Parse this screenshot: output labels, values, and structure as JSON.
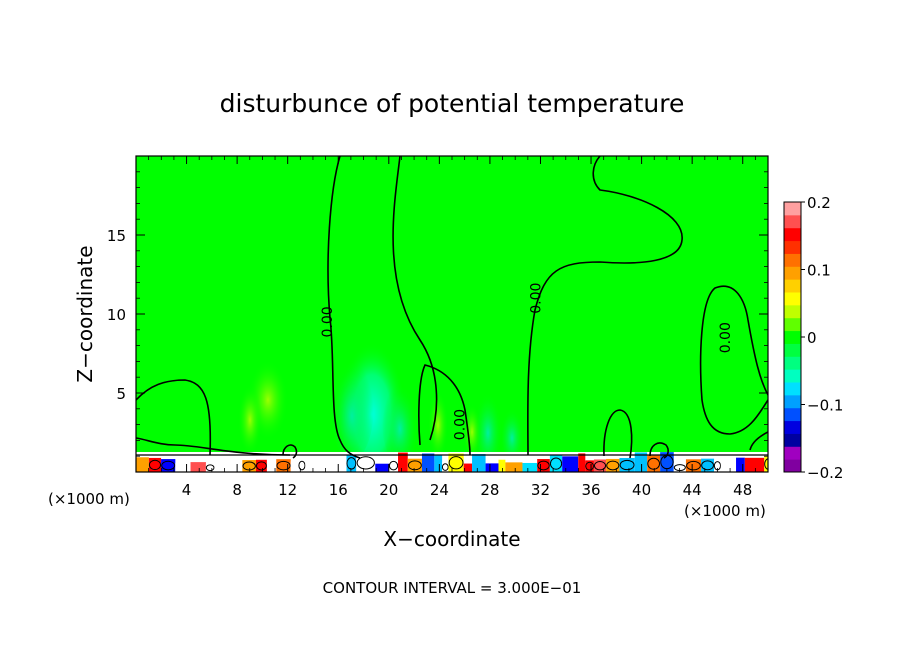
{
  "chart_data": {
    "type": "heatmap",
    "title": "disturbunce of potential temperature",
    "xlabel": "X−coordinate",
    "ylabel": "Z−coordinate",
    "x_unit_left": "(×1000 m)",
    "x_unit_right": "(×1000 m)",
    "xlim": [
      0,
      50
    ],
    "ylim": [
      0,
      20
    ],
    "x_ticks": [
      4,
      8,
      12,
      16,
      20,
      24,
      28,
      32,
      36,
      40,
      44,
      48
    ],
    "y_ticks": [
      5,
      10,
      15
    ],
    "contour_interval_text": "CONTOUR INTERVAL = 3.000E−01",
    "contour_labels": [
      {
        "text": "0.00",
        "x": 15.5,
        "y": 9.5
      },
      {
        "text": "0.00",
        "x": 26.0,
        "y": 3.0
      },
      {
        "text": "0.00",
        "x": 32.0,
        "y": 11.0
      },
      {
        "text": "0.00",
        "x": 47.0,
        "y": 8.5
      }
    ],
    "colorbar": {
      "min": -0.2,
      "max": 0.2,
      "tick_values": [
        0.2,
        0.1,
        0,
        -0.1,
        -0.2
      ],
      "tick_labels": [
        "0.2",
        "0.1",
        "0",
        "−0.1",
        "−0.2"
      ],
      "colors": [
        "#8000a0",
        "#a000c0",
        "#0000a0",
        "#0000e0",
        "#0050ff",
        "#00a0ff",
        "#00e0ff",
        "#00ffc0",
        "#00ff80",
        "#00ff40",
        "#00ff00",
        "#60ff00",
        "#c0ff00",
        "#ffff00",
        "#ffd000",
        "#ffa000",
        "#ff7000",
        "#ff3000",
        "#ff0000",
        "#ff5050",
        "#ffa0a0"
      ]
    },
    "background_color": "#00ff00"
  }
}
